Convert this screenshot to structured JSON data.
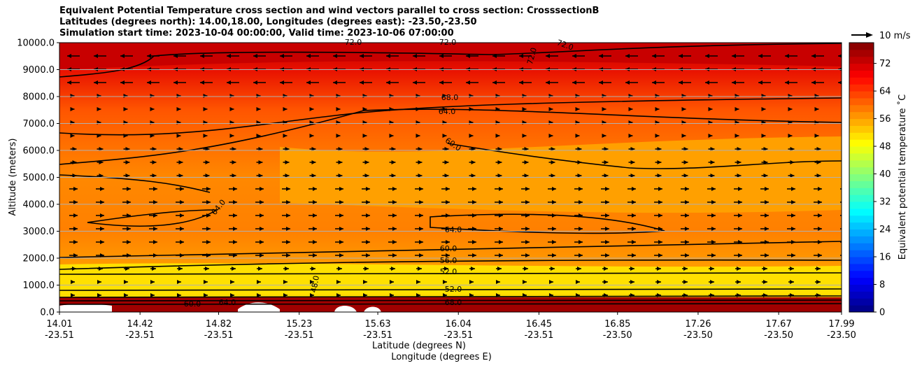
{
  "title_lines": [
    "Equivalent Potential Temperature cross section and wind vectors parallel to cross section: CrosssectionB",
    "Latitudes (degrees north): 14.00,18.00, Longitudes (degrees east): -23.50,-23.50",
    "Simulation start time: 2023-10-04 00:00:00, Valid time: 2023-10-06 07:00:00"
  ],
  "chart_data": {
    "type": "contour",
    "xlabel_lat": "Latitude (degrees N)",
    "xlabel_lon": "Longitude (degrees E)",
    "ylabel": "Altitude (meters)",
    "ylim": [
      0,
      10000
    ],
    "x_ticks": [
      {
        "lat": "14.01",
        "lon": "-23.51"
      },
      {
        "lat": "14.42",
        "lon": "-23.51"
      },
      {
        "lat": "14.82",
        "lon": "-23.51"
      },
      {
        "lat": "15.23",
        "lon": "-23.51"
      },
      {
        "lat": "15.63",
        "lon": "-23.51"
      },
      {
        "lat": "16.04",
        "lon": "-23.51"
      },
      {
        "lat": "16.45",
        "lon": "-23.51"
      },
      {
        "lat": "16.85",
        "lon": "-23.50"
      },
      {
        "lat": "17.26",
        "lon": "-23.50"
      },
      {
        "lat": "17.67",
        "lon": "-23.50"
      },
      {
        "lat": "17.99",
        "lon": "-23.50"
      }
    ],
    "y_ticks": [
      "0.0",
      "1000.0",
      "2000.0",
      "3000.0",
      "4000.0",
      "5000.0",
      "6000.0",
      "7000.0",
      "8000.0",
      "9000.0",
      "10000.0"
    ],
    "colorbar": {
      "label": "Equivalent potential temperature ˚C",
      "ticks": [
        "0",
        "8",
        "16",
        "24",
        "32",
        "40",
        "48",
        "56",
        "64",
        "72"
      ],
      "range": [
        0,
        78
      ],
      "colormap": "jet"
    },
    "quiver_key": "10 m/s",
    "contour_labels": [
      "72.0",
      "72.0",
      "72.0",
      "72.0",
      "68.0",
      "64.0",
      "60.0",
      "64.0",
      "64.0",
      "60.0",
      "56.0",
      "52.0",
      "52.0",
      "48.0",
      "60.0",
      "64.0",
      "68.0"
    ],
    "grid": "horizontal"
  }
}
